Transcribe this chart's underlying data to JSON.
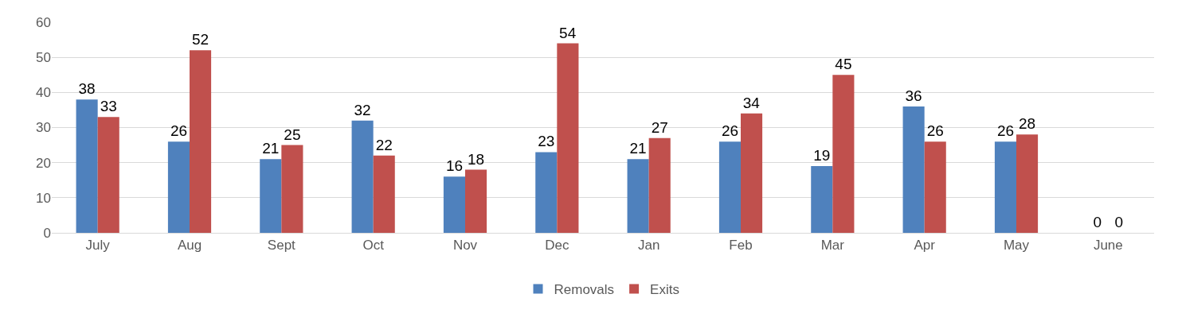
{
  "chart_data": {
    "type": "bar",
    "categories": [
      "July",
      "Aug",
      "Sept",
      "Oct",
      "Nov",
      "Dec",
      "Jan",
      "Feb",
      "Mar",
      "Apr",
      "May",
      "June"
    ],
    "series": [
      {
        "name": "Removals",
        "color": "#4f81bd",
        "values": [
          38,
          26,
          21,
          32,
          16,
          23,
          21,
          26,
          19,
          36,
          26,
          0
        ]
      },
      {
        "name": "Exits",
        "color": "#c0504d",
        "values": [
          33,
          52,
          25,
          22,
          18,
          54,
          27,
          34,
          45,
          26,
          28,
          0
        ]
      }
    ],
    "ylim": [
      0,
      60
    ],
    "yticks": [
      0,
      10,
      20,
      30,
      40,
      50,
      60
    ],
    "grid": "y",
    "legend": "bottom",
    "data_labels": true
  }
}
